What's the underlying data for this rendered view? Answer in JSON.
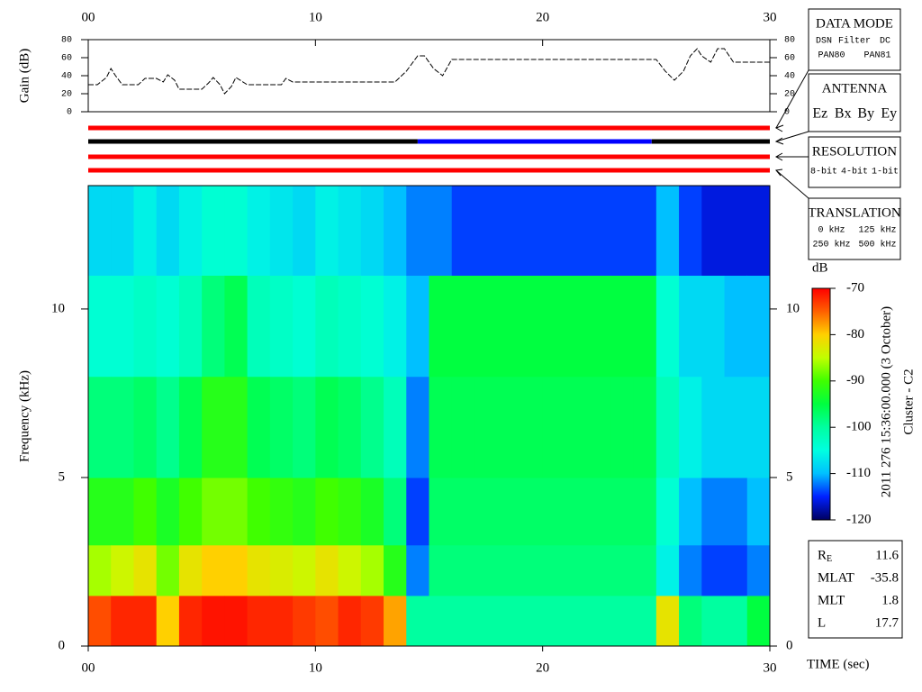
{
  "chart_data": [
    {
      "type": "line",
      "ylabel": "Gain (dB)",
      "color": "#000000",
      "x": [
        0,
        0.4,
        0.8,
        1.0,
        1.2,
        1.5,
        2.2,
        2.5,
        3.0,
        3.3,
        3.5,
        3.8,
        4.0,
        5.0,
        5.3,
        5.5,
        5.8,
        6.0,
        6.3,
        6.5,
        7.0,
        8.5,
        8.7,
        9.0,
        13.5,
        14.0,
        14.5,
        14.8,
        15.2,
        15.6,
        16.0,
        25.0,
        25.4,
        25.8,
        26.2,
        26.5,
        26.8,
        27.0,
        27.4,
        27.7,
        28.0,
        28.4,
        30
      ],
      "values": [
        30,
        30,
        38,
        48,
        40,
        30,
        30,
        37,
        37,
        33,
        41,
        35,
        25,
        25,
        32,
        38,
        30,
        20,
        28,
        38,
        30,
        30,
        37,
        33,
        33,
        45,
        62,
        62,
        48,
        40,
        58,
        58,
        45,
        35,
        45,
        62,
        70,
        62,
        55,
        70,
        70,
        55,
        55
      ],
      "xlim": [
        0,
        30
      ],
      "xticks": [
        {
          "value": 0,
          "label": "00"
        },
        10,
        20,
        30
      ],
      "ylim": [
        0,
        80
      ],
      "yticks": [
        0,
        20,
        40,
        60,
        80
      ]
    },
    {
      "type": "timeline",
      "xlim": [
        0,
        30
      ],
      "rows": [
        {
          "segments": [
            {
              "start": 0,
              "end": 30,
              "color": "#ff0000"
            }
          ]
        },
        {
          "segments": [
            {
              "start": 0,
              "end": 14.5,
              "color": "#000000"
            },
            {
              "start": 14.5,
              "end": 24.8,
              "color": "#0000ff"
            },
            {
              "start": 24.8,
              "end": 30,
              "color": "#000000"
            }
          ]
        },
        {
          "segments": [
            {
              "start": 0,
              "end": 30,
              "color": "#ff0000"
            }
          ]
        },
        {
          "segments": [
            {
              "start": 0,
              "end": 30,
              "color": "#ff0000"
            }
          ]
        }
      ]
    },
    {
      "type": "heatmap",
      "xlabel": "TIME (sec)",
      "ylabel": "Frequency (kHz)",
      "xbins": [
        0,
        1,
        2,
        3,
        4,
        5,
        6,
        7,
        8,
        9,
        10,
        11,
        12,
        13,
        14,
        15,
        16,
        17,
        18,
        19,
        20,
        21,
        22,
        23,
        24,
        25,
        26,
        27,
        28,
        29,
        30
      ],
      "ybins": [
        0,
        1.5,
        3,
        5,
        8,
        11,
        13.66
      ],
      "z": [
        [
          -74,
          -86,
          -92,
          -98,
          -104,
          -108
        ],
        [
          -72,
          -84,
          -92,
          -98,
          -104,
          -108
        ],
        [
          -72,
          -82,
          -90,
          -97,
          -103,
          -106
        ],
        [
          -80,
          -88,
          -93,
          -99,
          -104,
          -108
        ],
        [
          -72,
          -82,
          -90,
          -96,
          -102,
          -106
        ],
        [
          -71,
          -80,
          -88,
          -92,
          -98,
          -104
        ],
        [
          -71,
          -80,
          -88,
          -92,
          -96,
          -104
        ],
        [
          -72,
          -82,
          -90,
          -96,
          -102,
          -106
        ],
        [
          -72,
          -83,
          -91,
          -97,
          -103,
          -107
        ],
        [
          -73,
          -84,
          -92,
          -98,
          -104,
          -108
        ],
        [
          -74,
          -82,
          -90,
          -96,
          -102,
          -106
        ],
        [
          -72,
          -84,
          -91,
          -97,
          -103,
          -107
        ],
        [
          -73,
          -86,
          -93,
          -99,
          -104,
          -108
        ],
        [
          -78,
          -92,
          -98,
          -102,
          -106,
          -110
        ],
        [
          -100,
          -112,
          -114,
          -112,
          -110,
          -112
        ],
        [
          -100,
          -98,
          -97,
          -96,
          -95,
          -112
        ],
        [
          -100,
          -98,
          -97,
          -96,
          -95,
          -114
        ],
        [
          -100,
          -98,
          -97,
          -96,
          -95,
          -114
        ],
        [
          -100,
          -98,
          -97,
          -96,
          -95,
          -114
        ],
        [
          -100,
          -98,
          -97,
          -96,
          -95,
          -114
        ],
        [
          -100,
          -98,
          -97,
          -96,
          -95,
          -114
        ],
        [
          -100,
          -98,
          -97,
          -96,
          -95,
          -114
        ],
        [
          -100,
          -98,
          -97,
          -96,
          -95,
          -114
        ],
        [
          -100,
          -98,
          -97,
          -96,
          -95,
          -114
        ],
        [
          -100,
          -98,
          -97,
          -96,
          -95,
          -114
        ],
        [
          -82,
          -106,
          -104,
          -102,
          -104,
          -110
        ],
        [
          -98,
          -112,
          -110,
          -106,
          -108,
          -114
        ],
        [
          -100,
          -114,
          -112,
          -108,
          -108,
          -116
        ],
        [
          -100,
          -114,
          -112,
          -108,
          -110,
          -116
        ],
        [
          -95,
          -112,
          -110,
          -108,
          -110,
          -116
        ]
      ],
      "xlim": [
        0,
        30
      ],
      "xticks": [
        {
          "value": 0,
          "label": "00"
        },
        10,
        20,
        30
      ],
      "ylim": [
        0,
        13.66
      ],
      "yticks": [
        0,
        5,
        10
      ],
      "zlabel": "dB",
      "zlim": [
        -120,
        -70
      ],
      "zticks": [
        -70,
        -80,
        -90,
        -100,
        -110,
        -120
      ],
      "colormap": [
        "#000060",
        "#0020ff",
        "#00c0ff",
        "#00ffe0",
        "#00ffa0",
        "#00ff40",
        "#40ff00",
        "#c0ff00",
        "#ffd000",
        "#ff6000",
        "#ff0000"
      ]
    }
  ],
  "panels": [
    {
      "title": "DATA MODE",
      "rows": [
        [
          {
            "text": "DSN",
            "color": "#ff0000"
          },
          {
            "text": "Filter",
            "color": "#00c000"
          },
          {
            "text": "DC",
            "color": "#0000ff"
          }
        ],
        [
          {
            "text": "PAN80",
            "color": "#000000"
          },
          {
            "text": "PAN81",
            "color": "#00c0c0"
          }
        ]
      ]
    },
    {
      "title": "ANTENNA",
      "rows": [
        [
          {
            "text": "Ez",
            "color": "#ff0000"
          },
          {
            "text": "Bx",
            "color": "#00c000"
          },
          {
            "text": "By",
            "color": "#0000ff"
          },
          {
            "text": "Ey",
            "color": "#000000"
          }
        ]
      ]
    },
    {
      "title": "RESOLUTION",
      "rows": [
        [
          {
            "text": "8-bit",
            "color": "#ff0000"
          },
          {
            "text": "4-bit",
            "color": "#00c000"
          },
          {
            "text": "1-bit",
            "color": "#0000ff"
          }
        ]
      ]
    },
    {
      "title": "TRANSLATION",
      "rows": [
        [
          {
            "text": "0 kHz",
            "color": "#ff0000"
          },
          {
            "text": "125 kHz",
            "color": "#00c000"
          }
        ],
        [
          {
            "text": "250 kHz",
            "color": "#0000ff"
          },
          {
            "text": "500 kHz",
            "color": "#000000"
          }
        ]
      ]
    }
  ],
  "orbit": [
    {
      "label": "R",
      "sub": "E",
      "value": 11.6
    },
    {
      "label": "MLAT",
      "value": -35.8
    },
    {
      "label": "MLT",
      "value": 1.8
    },
    {
      "label": "L",
      "value": 17.7
    }
  ],
  "annotations": [
    "2011 276 15:36:00.000 (3 October)",
    "Cluster - C2"
  ]
}
